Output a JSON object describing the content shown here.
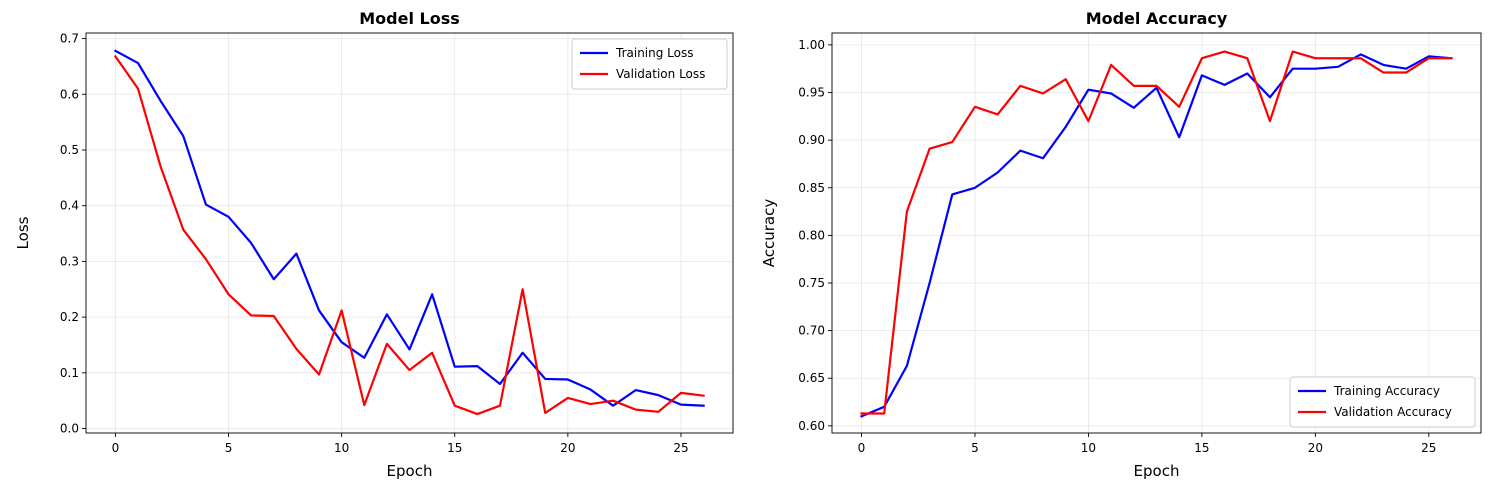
{
  "chart_data": [
    {
      "type": "line",
      "title": "Model Loss",
      "xlabel": "Epoch",
      "ylabel": "Loss",
      "xlim": [
        -1.3,
        27.3
      ],
      "ylim": [
        -0.008,
        0.71
      ],
      "xticks": [
        0,
        5,
        10,
        15,
        20,
        25
      ],
      "yticks": [
        0.0,
        0.1,
        0.2,
        0.3,
        0.4,
        0.5,
        0.6,
        0.7
      ],
      "ytick_decimals": 1,
      "grid": true,
      "legend_position": "top-right",
      "x": [
        0,
        1,
        2,
        3,
        4,
        5,
        6,
        7,
        8,
        9,
        10,
        11,
        12,
        13,
        14,
        15,
        16,
        17,
        18,
        19,
        20,
        21,
        22,
        23,
        24,
        25,
        26
      ],
      "series": [
        {
          "name": "Training Loss",
          "color": "#0000ff",
          "values": [
            0.678,
            0.656,
            0.588,
            0.525,
            0.402,
            0.38,
            0.333,
            0.268,
            0.314,
            0.212,
            0.155,
            0.127,
            0.205,
            0.142,
            0.241,
            0.111,
            0.112,
            0.08,
            0.136,
            0.089,
            0.088,
            0.07,
            0.041,
            0.069,
            0.06,
            0.043,
            0.041
          ]
        },
        {
          "name": "Validation Loss",
          "color": "#ff0000",
          "values": [
            0.668,
            0.61,
            0.47,
            0.357,
            0.304,
            0.241,
            0.203,
            0.202,
            0.143,
            0.097,
            0.212,
            0.042,
            0.152,
            0.105,
            0.136,
            0.041,
            0.026,
            0.041,
            0.25,
            0.028,
            0.055,
            0.044,
            0.05,
            0.034,
            0.03,
            0.064,
            0.059
          ]
        }
      ]
    },
    {
      "type": "line",
      "title": "Model Accuracy",
      "xlabel": "Epoch",
      "ylabel": "Accuracy",
      "xlim": [
        -1.3,
        27.3
      ],
      "ylim": [
        0.5925,
        1.0125
      ],
      "xticks": [
        0,
        5,
        10,
        15,
        20,
        25
      ],
      "yticks": [
        0.6,
        0.65,
        0.7,
        0.75,
        0.8,
        0.85,
        0.9,
        0.95,
        1.0
      ],
      "ytick_decimals": 2,
      "grid": true,
      "legend_position": "bottom-right",
      "x": [
        0,
        1,
        2,
        3,
        4,
        5,
        6,
        7,
        8,
        9,
        10,
        11,
        12,
        13,
        14,
        15,
        16,
        17,
        18,
        19,
        20,
        21,
        22,
        23,
        24,
        25,
        26
      ],
      "series": [
        {
          "name": "Training Accuracy",
          "color": "#0000ff",
          "values": [
            0.61,
            0.62,
            0.663,
            0.75,
            0.843,
            0.85,
            0.866,
            0.889,
            0.881,
            0.914,
            0.953,
            0.949,
            0.934,
            0.955,
            0.903,
            0.968,
            0.958,
            0.97,
            0.945,
            0.975,
            0.975,
            0.977,
            0.99,
            0.979,
            0.975,
            0.988,
            0.986
          ]
        },
        {
          "name": "Validation Accuracy",
          "color": "#ff0000",
          "values": [
            0.613,
            0.613,
            0.825,
            0.891,
            0.898,
            0.935,
            0.927,
            0.957,
            0.949,
            0.964,
            0.92,
            0.979,
            0.957,
            0.957,
            0.935,
            0.986,
            0.993,
            0.986,
            0.92,
            0.993,
            0.986,
            0.986,
            0.986,
            0.971,
            0.971,
            0.986,
            0.986
          ]
        }
      ]
    }
  ]
}
